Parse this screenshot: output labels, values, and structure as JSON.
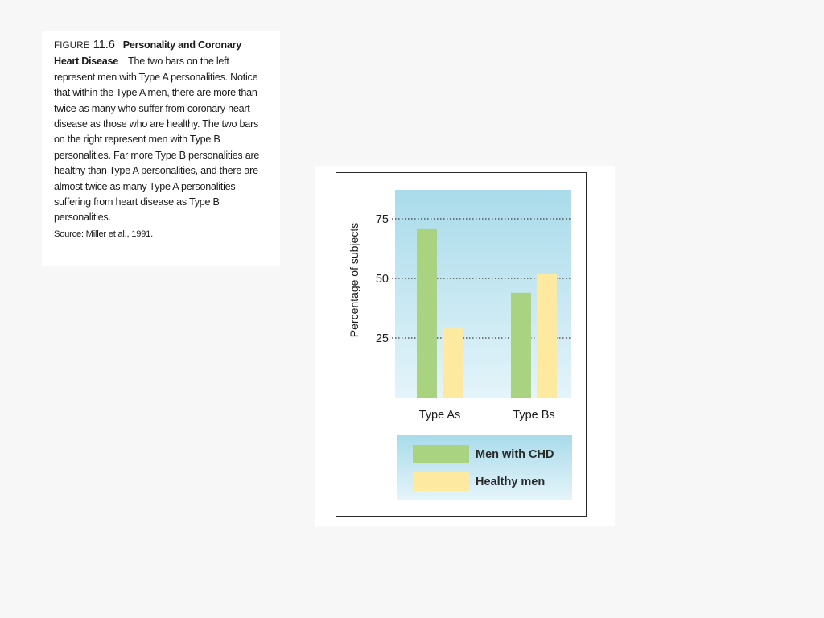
{
  "caption": {
    "figure_word": "FIGURE",
    "figure_number": "11.6",
    "title": "Personality and Coronary Heart Disease",
    "body": "The two bars on the left represent men with Type A personalities. Notice that within the Type A men, there are more than twice as many who suffer from coronary heart disease as those who are healthy. The two bars on the right represent men with Type B personalities. Far more Type B personalities are healthy than Type A personalities, and there are almost twice as many Type A personalities suffering from heart disease as Type B personalities.",
    "source": "Source: Miller et al., 1991."
  },
  "chart_data": {
    "type": "bar",
    "categories": [
      "Type As",
      "Type Bs"
    ],
    "series": [
      {
        "name": "Men with CHD",
        "values": [
          71,
          44
        ],
        "color": "#a9d281"
      },
      {
        "name": "Healthy men",
        "values": [
          29,
          52
        ],
        "color": "#fde9a0"
      }
    ],
    "title": "",
    "xlabel": "",
    "ylabel": "Percentage of subjects",
    "ylim": [
      0,
      85
    ],
    "yticks": [
      25,
      50,
      75
    ],
    "grid": true,
    "grid_style": "dotted",
    "legend_placement": "bottom"
  },
  "colors": {
    "plot_bg_top": "#a9dbea",
    "plot_bg_bottom": "#e4f4fa",
    "frame": "#2a2a2a"
  }
}
